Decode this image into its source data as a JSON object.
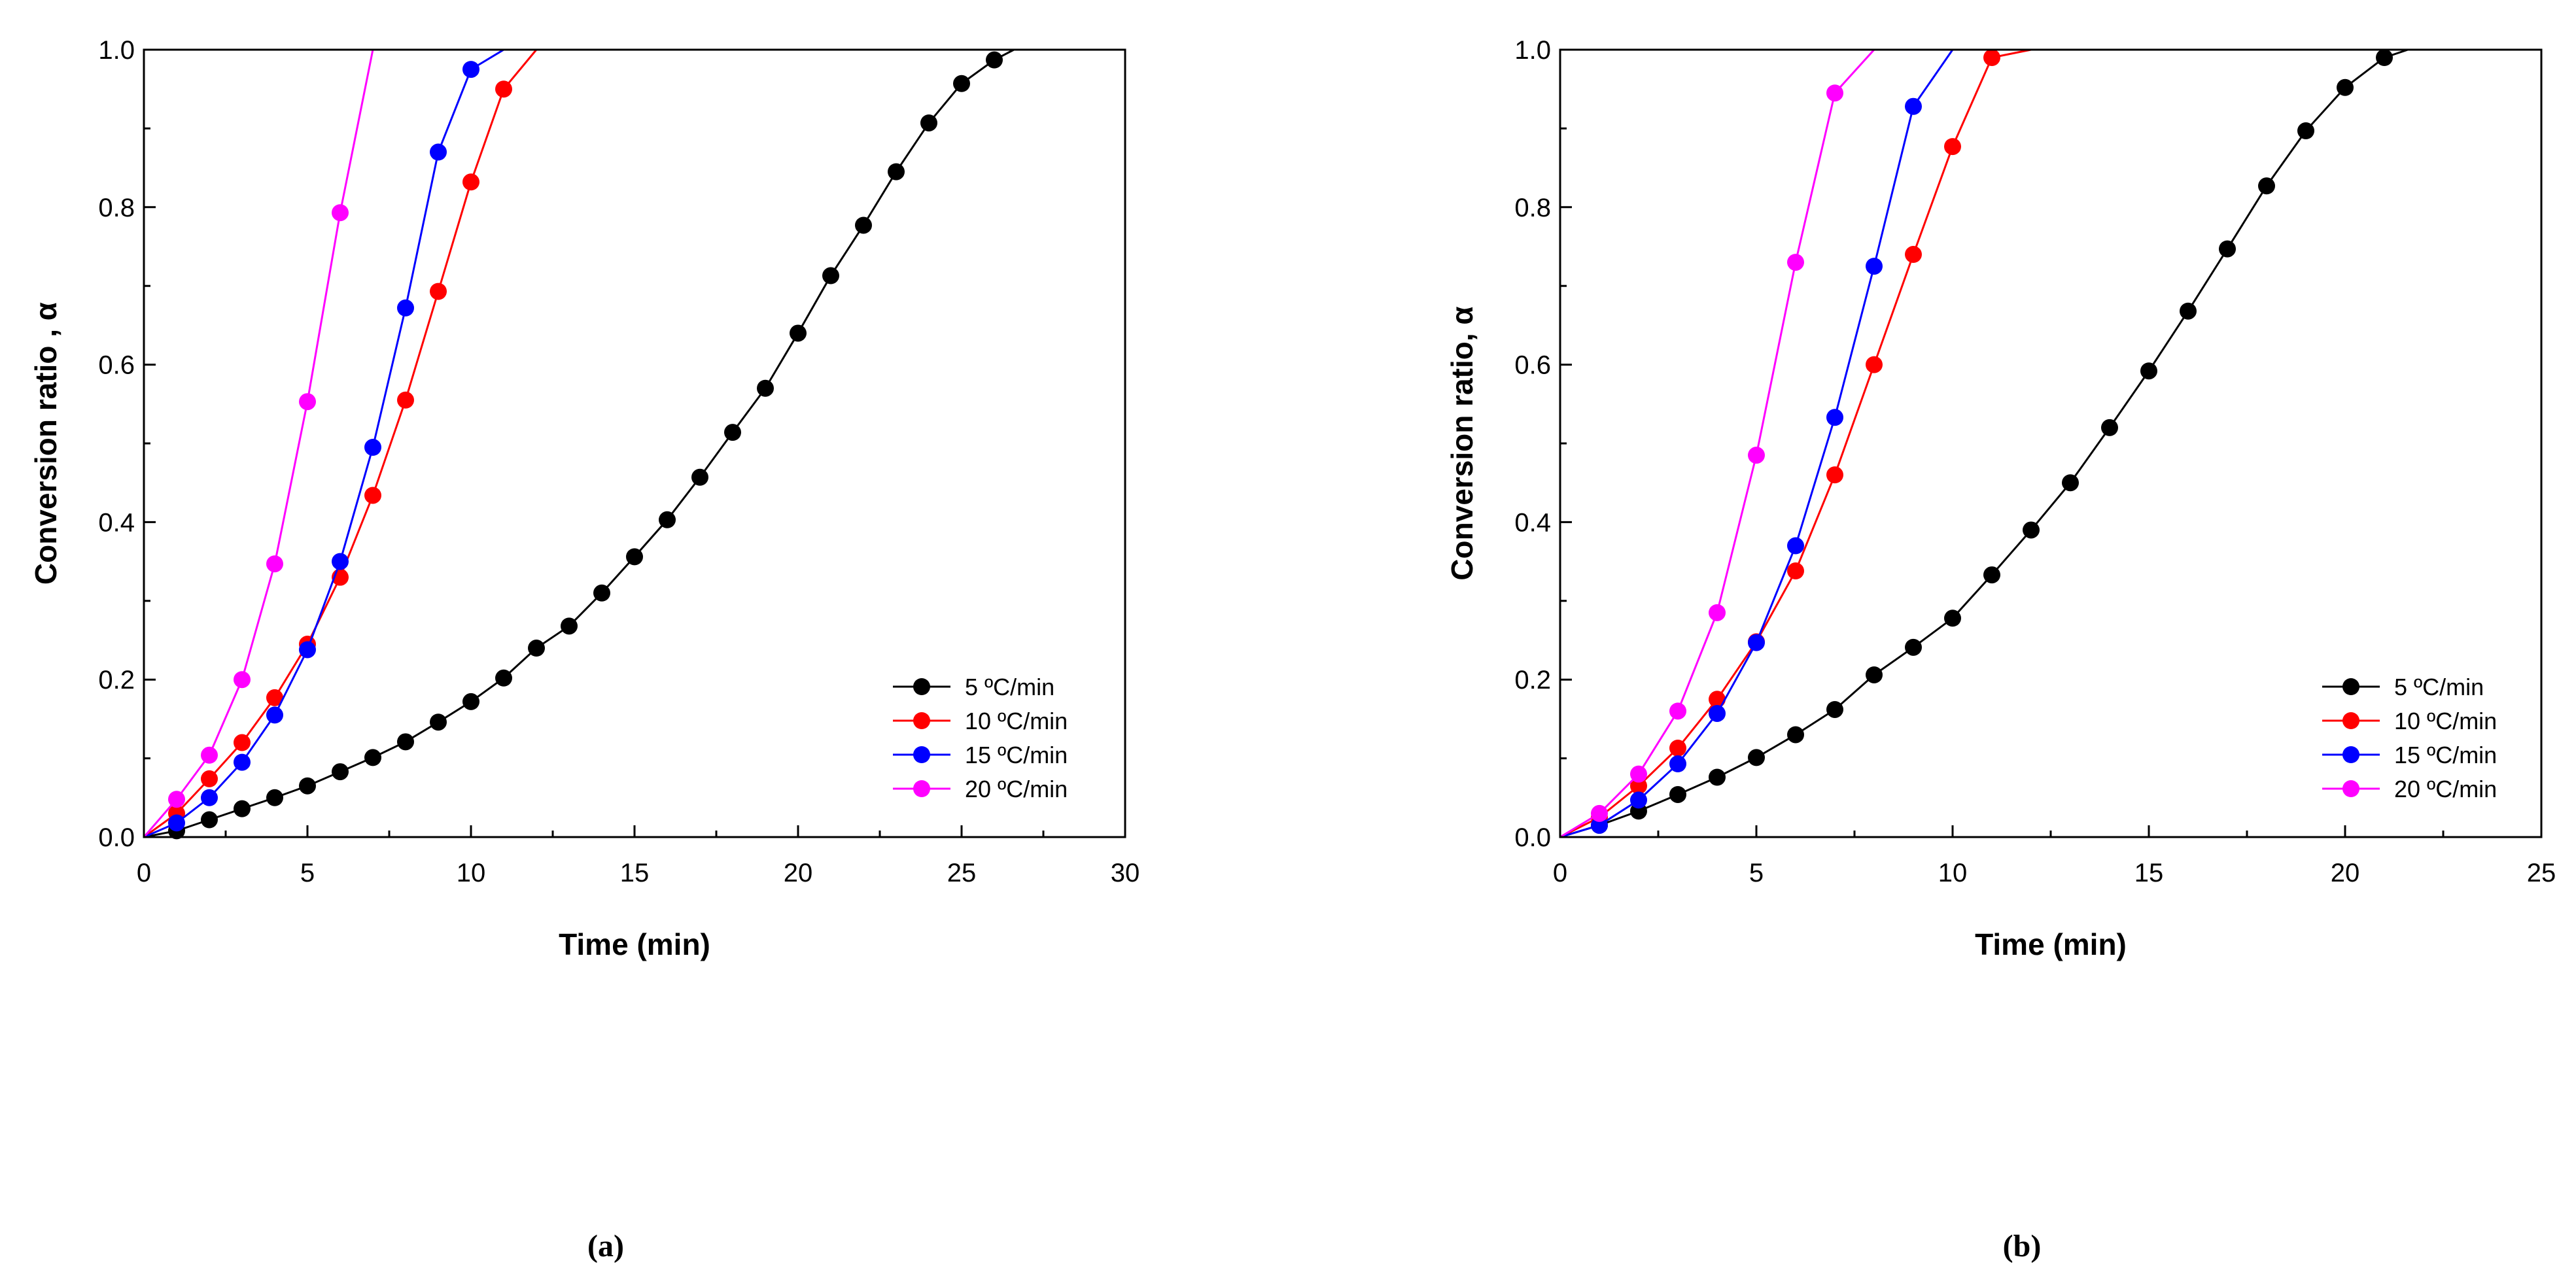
{
  "chart_data": [
    {
      "type": "line",
      "panel_label": "(a)",
      "xlabel": "Time (min)",
      "ylabel": "Conversion ratio , α",
      "xlim": [
        0,
        30
      ],
      "ylim": [
        0,
        1.0
      ],
      "xticks": [
        0,
        5,
        10,
        15,
        20,
        25,
        30
      ],
      "xtick_labels": [
        "0",
        "5",
        "10",
        "15",
        "20",
        "25",
        "30"
      ],
      "yticks": [
        0,
        0.2,
        0.4,
        0.6,
        0.8,
        1.0
      ],
      "ytick_labels": [
        "0.0",
        "0.2",
        "0.4",
        "0.6",
        "0.8",
        "1.0"
      ],
      "grid": false,
      "legend_position": "bottom-right",
      "series": [
        {
          "name": "5 ºC/min",
          "color": "#000000",
          "x": [
            0,
            1,
            2,
            3,
            4,
            5,
            6,
            7,
            8,
            9,
            10,
            11,
            12,
            13,
            14,
            15,
            16,
            17,
            18,
            19,
            20,
            21,
            22,
            23,
            24,
            25,
            26,
            26.6
          ],
          "y": [
            0,
            0.008,
            0.022,
            0.036,
            0.05,
            0.065,
            0.083,
            0.101,
            0.121,
            0.146,
            0.172,
            0.202,
            0.24,
            0.268,
            0.31,
            0.356,
            0.403,
            0.457,
            0.514,
            0.57,
            0.64,
            0.713,
            0.777,
            0.845,
            0.907,
            0.957,
            0.987,
            1.0
          ]
        },
        {
          "name": "10 ºC/min",
          "color": "#ff0000",
          "x": [
            0,
            1,
            2,
            3,
            4,
            5,
            6,
            7,
            8,
            9,
            10,
            11,
            12
          ],
          "y": [
            0,
            0.03,
            0.074,
            0.12,
            0.177,
            0.245,
            0.33,
            0.434,
            0.555,
            0.693,
            0.832,
            0.95,
            1.0
          ]
        },
        {
          "name": "15 ºC/min",
          "color": "#0000ff",
          "x": [
            0,
            1,
            2,
            3,
            4,
            5,
            6,
            7,
            8,
            9,
            10,
            11
          ],
          "y": [
            0,
            0.018,
            0.05,
            0.095,
            0.155,
            0.238,
            0.35,
            0.495,
            0.672,
            0.87,
            0.975,
            1.0
          ]
        },
        {
          "name": "20 ºC/min",
          "color": "#ff00ff",
          "x": [
            0,
            1,
            2,
            3,
            4,
            5,
            6,
            7
          ],
          "y": [
            0,
            0.048,
            0.104,
            0.2,
            0.347,
            0.553,
            0.793,
            1.0
          ]
        }
      ]
    },
    {
      "type": "line",
      "panel_label": "(b)",
      "xlabel": "Time (min)",
      "ylabel": "Conversion ratio, α",
      "xlim": [
        0,
        25
      ],
      "ylim": [
        0,
        1.0
      ],
      "xticks": [
        0,
        5,
        10,
        15,
        20,
        25
      ],
      "xtick_labels": [
        "0",
        "5",
        "10",
        "15",
        "20",
        "25"
      ],
      "yticks": [
        0,
        0.2,
        0.4,
        0.6,
        0.8,
        1.0
      ],
      "ytick_labels": [
        "0.0",
        "0.2",
        "0.4",
        "0.6",
        "0.8",
        "1.0"
      ],
      "grid": false,
      "legend_position": "bottom-right",
      "series": [
        {
          "name": "5 ºC/min",
          "color": "#000000",
          "x": [
            0,
            1,
            2,
            3,
            4,
            5,
            6,
            7,
            8,
            9,
            10,
            11,
            12,
            13,
            14,
            15,
            16,
            17,
            18,
            19,
            20,
            21,
            21.6
          ],
          "y": [
            0,
            0.015,
            0.033,
            0.054,
            0.076,
            0.101,
            0.13,
            0.162,
            0.206,
            0.241,
            0.278,
            0.333,
            0.39,
            0.45,
            0.52,
            0.592,
            0.668,
            0.747,
            0.827,
            0.897,
            0.952,
            0.99,
            1.0
          ]
        },
        {
          "name": "10 ºC/min",
          "color": "#ff0000",
          "x": [
            0,
            1,
            2,
            3,
            4,
            5,
            6,
            7,
            8,
            9,
            10,
            11,
            12
          ],
          "y": [
            0,
            0.025,
            0.065,
            0.113,
            0.175,
            0.248,
            0.338,
            0.46,
            0.6,
            0.74,
            0.877,
            0.99,
            1.0
          ]
        },
        {
          "name": "15 ºC/min",
          "color": "#0000ff",
          "x": [
            0,
            1,
            2,
            3,
            4,
            5,
            6,
            7,
            8,
            9,
            10
          ],
          "y": [
            0,
            0.015,
            0.047,
            0.093,
            0.157,
            0.247,
            0.37,
            0.533,
            0.725,
            0.928,
            1.0
          ]
        },
        {
          "name": "20 ºC/min",
          "color": "#ff00ff",
          "x": [
            0,
            1,
            2,
            3,
            4,
            5,
            6,
            7,
            8
          ],
          "y": [
            0,
            0.03,
            0.08,
            0.16,
            0.285,
            0.485,
            0.73,
            0.945,
            1.0
          ]
        }
      ]
    }
  ]
}
